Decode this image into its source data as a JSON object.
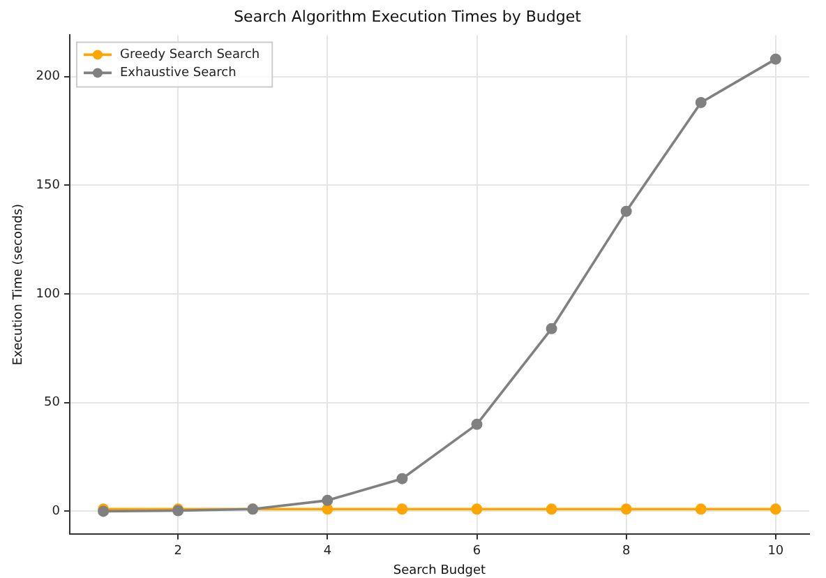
{
  "chart_data": {
    "type": "line",
    "title": "Search Algorithm Execution Times by Budget",
    "xlabel": "Search Budget",
    "ylabel": "Execution Time (seconds)",
    "x": [
      1,
      2,
      3,
      4,
      5,
      6,
      7,
      8,
      9,
      10
    ],
    "series": [
      {
        "name": "Greedy Search Search",
        "color": "#ffa500",
        "values": [
          1,
          1,
          1,
          1,
          1,
          1,
          1,
          1,
          1,
          1
        ]
      },
      {
        "name": "Exhaustive Search",
        "color": "#808080",
        "values": [
          0,
          0.3,
          1,
          5,
          15,
          40,
          84,
          138,
          188,
          208
        ]
      }
    ],
    "xlim": [
      0.55,
      10.45
    ],
    "xticks": [
      2,
      4,
      6,
      8,
      10
    ],
    "ylim": [
      -10.4,
      219
    ],
    "yticks": [
      0,
      50,
      100,
      150,
      200
    ],
    "grid": true,
    "legend": "top left",
    "marker": "circle",
    "line_style": "solid"
  }
}
